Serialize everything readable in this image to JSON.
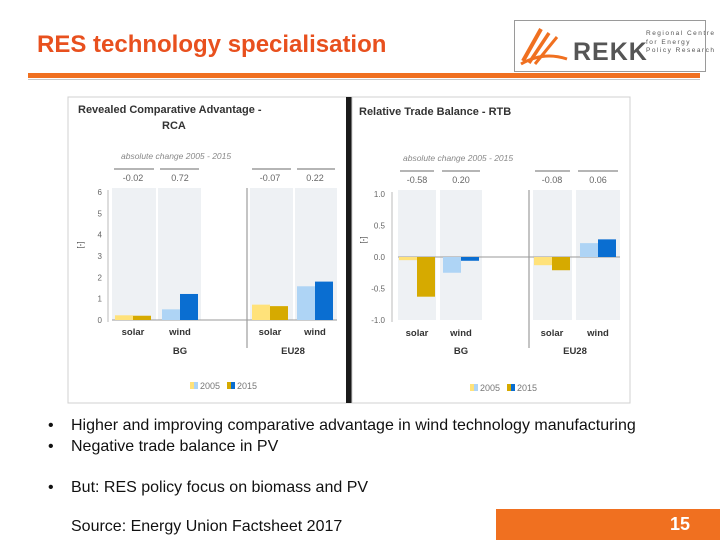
{
  "slide": {
    "title": "RES technology specialisation",
    "logo": {
      "word": "REKK",
      "tagline": [
        "Regional Centre",
        "for Energy",
        "Policy Research"
      ]
    },
    "bullets": [
      "Higher and improving comparative advantage in wind technology manufacturing",
      "Negative trade balance in PV",
      "But: RES policy focus on biomass and PV"
    ],
    "source": "Source: Energy Union Factsheet 2017",
    "page_number": "15",
    "colors": {
      "accent": "#f07020",
      "title": "#e8501e",
      "c2005_solar": "#ffe27a",
      "c2015_solar": "#d6aa00",
      "c2005_wind": "#aed4f5",
      "c2015_wind": "#0a6ed1"
    }
  },
  "chart_data": [
    {
      "type": "bar",
      "title": "Revealed Comparative Advantage - RCA",
      "title_lines": [
        "Revealed Comparative Advantage -",
        "RCA"
      ],
      "subtitle": "absolute change 2005 - 2015",
      "ylabel": "[-]",
      "ylim": [
        0,
        6
      ],
      "yticks": [
        "0",
        "1",
        "2",
        "3",
        "4",
        "5",
        "6"
      ],
      "groups": [
        {
          "name": "BG",
          "categories": [
            "solar",
            "wind"
          ],
          "changes": [
            "-0.02",
            "0.72"
          ]
        },
        {
          "name": "EU28",
          "categories": [
            "solar",
            "wind"
          ],
          "changes": [
            "-0.07",
            "0.22"
          ]
        }
      ],
      "series": [
        {
          "name": "2005",
          "values": [
            0.22,
            0.5,
            0.72,
            1.58
          ]
        },
        {
          "name": "2015",
          "values": [
            0.2,
            1.22,
            0.65,
            1.8
          ]
        }
      ],
      "legend": {
        "position": "bottom",
        "entries": [
          "2005",
          "2015"
        ]
      },
      "grid": false
    },
    {
      "type": "bar",
      "title": "Relative Trade Balance - RTB",
      "subtitle": "absolute change 2005 - 2015",
      "ylabel": "[-]",
      "ylim": [
        -1.0,
        1.0
      ],
      "yticks": [
        "1.0",
        "0.5",
        "0.0",
        "-0.5",
        "-1.0"
      ],
      "groups": [
        {
          "name": "BG",
          "categories": [
            "solar",
            "wind"
          ],
          "changes": [
            "-0.58",
            "0.20"
          ]
        },
        {
          "name": "EU28",
          "categories": [
            "solar",
            "wind"
          ],
          "changes": [
            "-0.08",
            "0.06"
          ]
        }
      ],
      "series": [
        {
          "name": "2005",
          "values": [
            -0.05,
            -0.25,
            -0.13,
            0.22
          ]
        },
        {
          "name": "2015",
          "values": [
            -0.63,
            -0.06,
            -0.21,
            0.28
          ]
        }
      ],
      "legend": {
        "position": "bottom",
        "entries": [
          "2005",
          "2015"
        ]
      },
      "grid": false
    }
  ]
}
